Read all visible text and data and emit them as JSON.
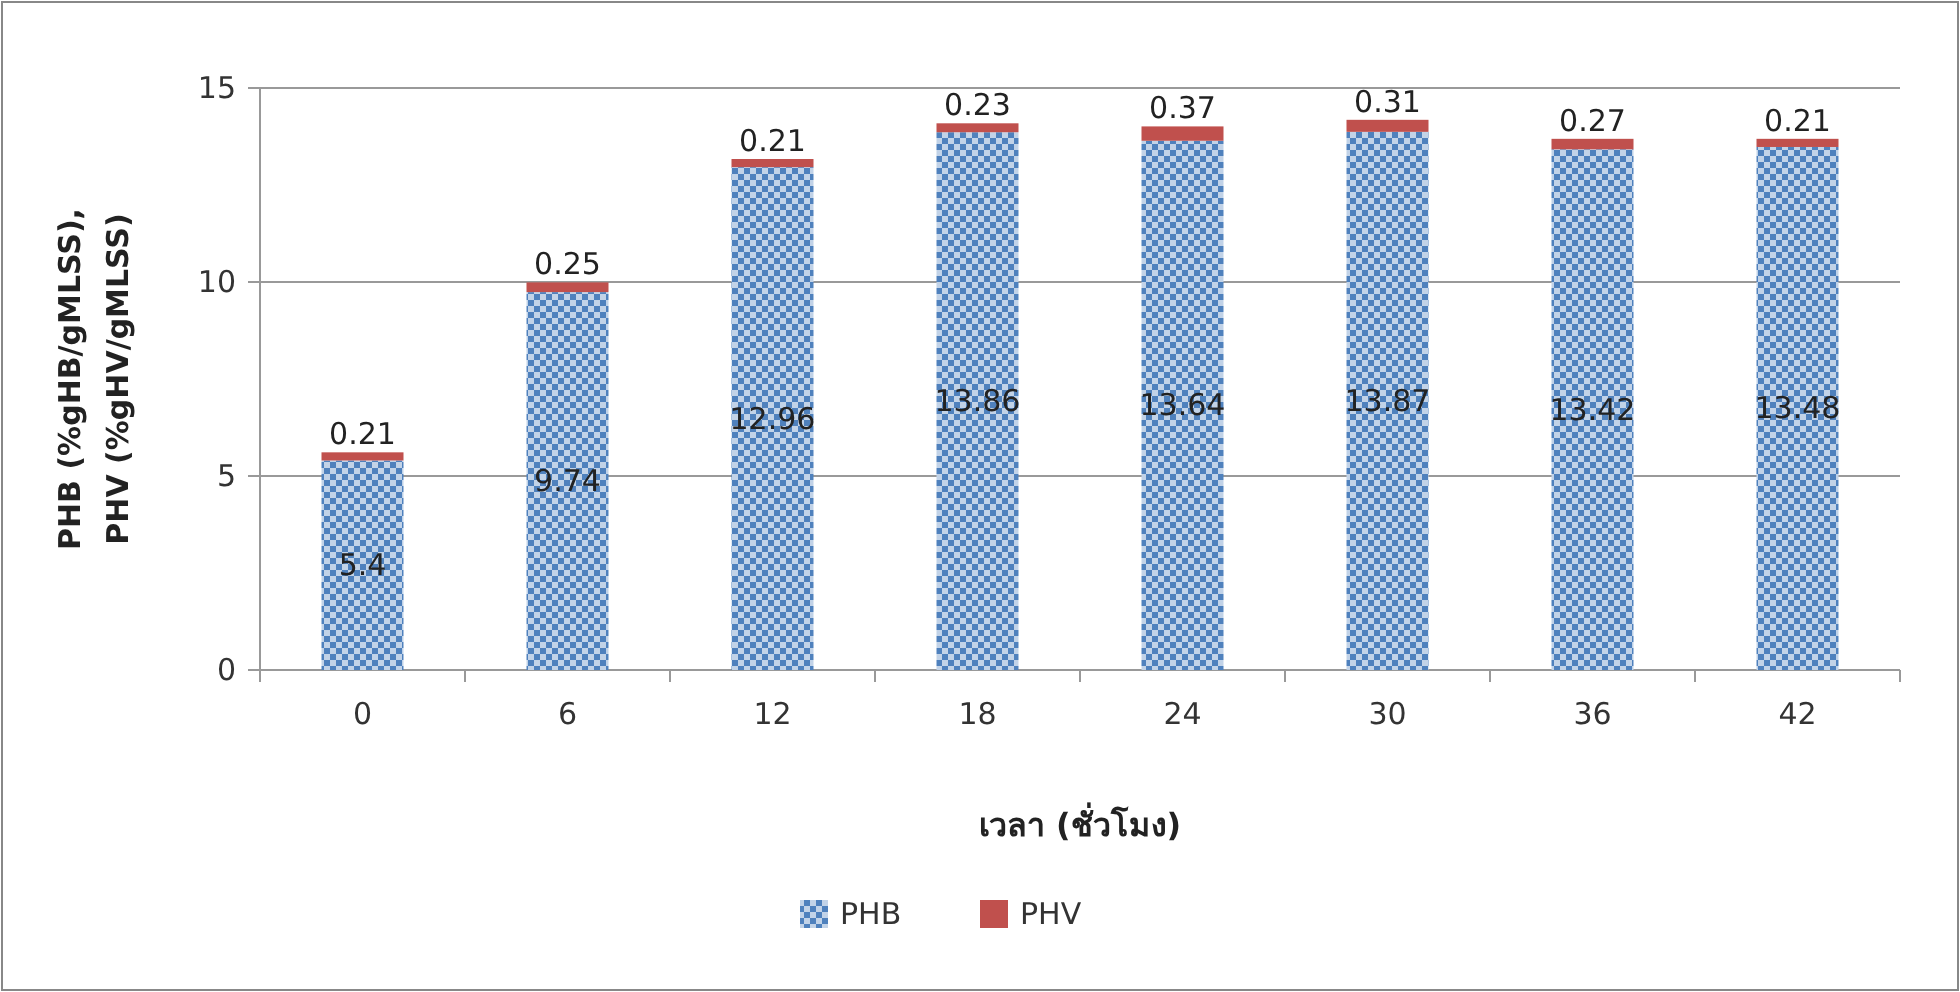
{
  "chart_data": {
    "type": "bar",
    "stacked": true,
    "xlabel": "เวลา (ชั่วโมง)",
    "ylabel": "PHB (%gHB/gMLSS),\nPHV (%gHV/gMLSS)",
    "categories": [
      "0",
      "6",
      "12",
      "18",
      "24",
      "30",
      "36",
      "42"
    ],
    "series": [
      {
        "name": "PHB",
        "color": "#4f81bd",
        "values": [
          5.4,
          9.74,
          12.96,
          13.86,
          13.64,
          13.87,
          13.42,
          13.48
        ]
      },
      {
        "name": "PHV",
        "color": "#c0504d",
        "values": [
          0.21,
          0.25,
          0.21,
          0.23,
          0.37,
          0.31,
          0.27,
          0.21
        ]
      }
    ],
    "ylim": [
      0,
      15
    ],
    "yticks": [
      0,
      5,
      10,
      15
    ],
    "grid": "y",
    "data_labels": true,
    "legend": "bottom"
  }
}
